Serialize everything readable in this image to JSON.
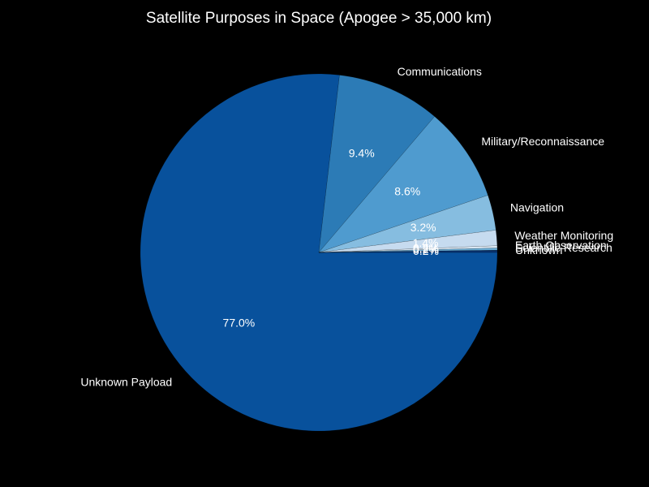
{
  "chart_data": {
    "type": "pie",
    "title": "Satellite Purposes in Space (Apogee > 35,000 km)",
    "start_angle_deg": 0,
    "direction": "clockwise",
    "slices": [
      {
        "label": "Unknown Payload",
        "value": 77.0,
        "pct_label": "77.0%",
        "color": "#08519c"
      },
      {
        "label": "Communications",
        "value": 9.4,
        "pct_label": "9.4%",
        "color": "#2c7bb6"
      },
      {
        "label": "Military/Reconnaissance",
        "value": 8.6,
        "pct_label": "8.6%",
        "color": "#4f9bcf"
      },
      {
        "label": "Navigation",
        "value": 3.2,
        "pct_label": "3.2%",
        "color": "#86bde0"
      },
      {
        "label": "Weather Monitoring",
        "value": 1.4,
        "pct_label": "1.4%",
        "color": "#c6dbef"
      },
      {
        "label": "Earth Observation",
        "value": 0.2,
        "pct_label": "0.2%",
        "color": "#deebf7"
      },
      {
        "label": "Scientific Research",
        "value": 0.2,
        "pct_label": "0.2%",
        "color": "#6baed6"
      },
      {
        "label": "Unknown",
        "value": 0.2,
        "pct_label": "0.2%",
        "color": "#08306b"
      }
    ]
  }
}
